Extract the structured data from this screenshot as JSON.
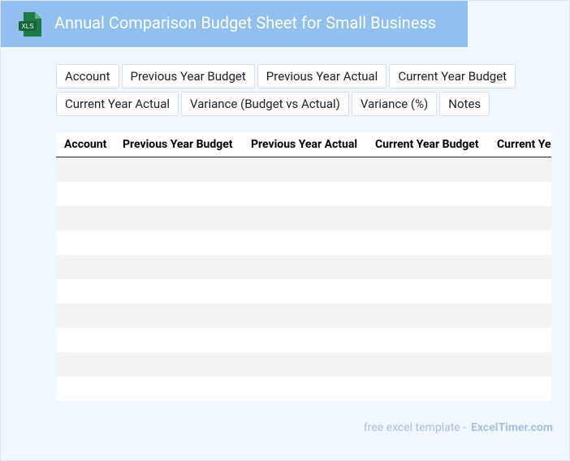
{
  "header": {
    "title": "Annual Comparison Budget Sheet for Small Business",
    "icon_label": "XLS"
  },
  "fields": [
    "Account",
    "Previous Year Budget",
    "Previous Year Actual",
    "Current Year Budget",
    "Current Year Actual",
    "Variance (Budget vs Actual)",
    "Variance (%)",
    "Notes"
  ],
  "table": {
    "columns": [
      "Account",
      "Previous Year Budget",
      "Previous Year Actual",
      "Current Year Budget",
      "Current Year Actual"
    ]
  },
  "footer": {
    "text": "free excel template -",
    "brand": "ExcelTimer.com"
  }
}
